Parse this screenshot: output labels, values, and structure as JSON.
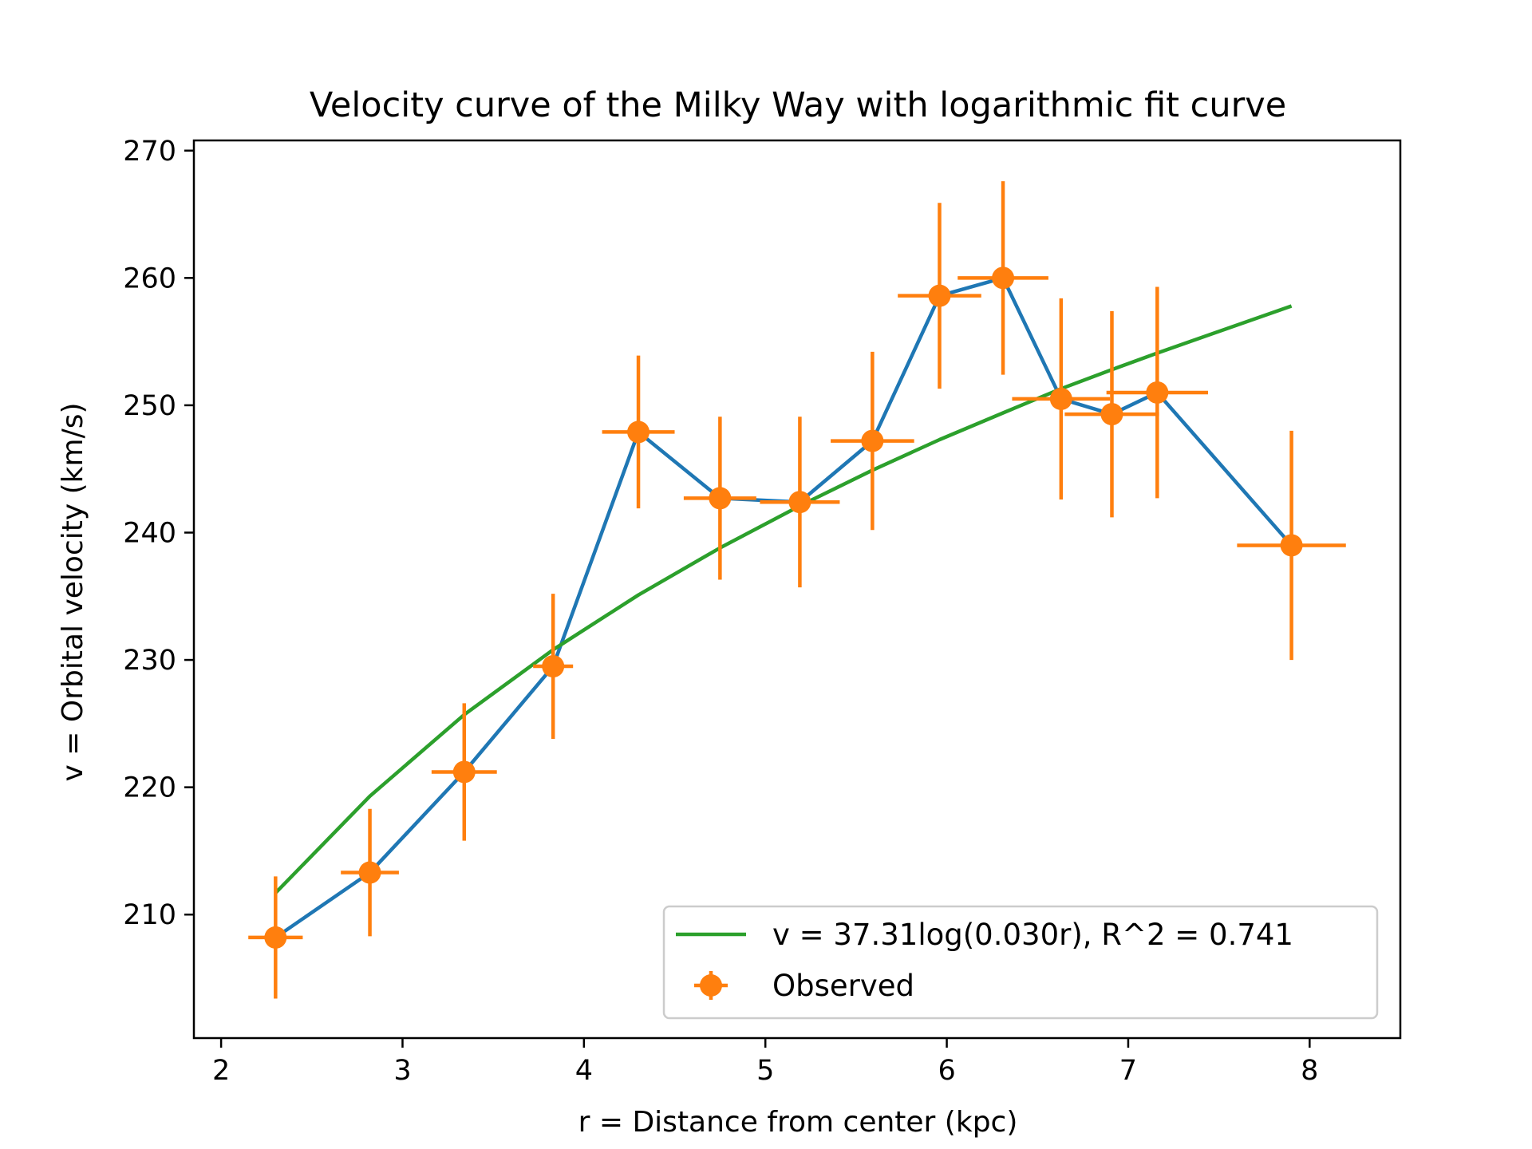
{
  "chart_data": {
    "type": "line",
    "title": "Velocity curve of the Milky Way with logarithmic fit curve",
    "xlabel": "r = Distance from center (kpc)",
    "ylabel": "v = Orbital velocity (km/s)",
    "xlim": [
      1.85,
      8.5
    ],
    "ylim": [
      200.3,
      270.8
    ],
    "xticks": [
      2,
      3,
      4,
      5,
      6,
      7,
      8
    ],
    "yticks": [
      210,
      220,
      230,
      240,
      250,
      260,
      270
    ],
    "grid": false,
    "legend_position": "lower-right",
    "observed": {
      "name": "Observed",
      "x": [
        2.3,
        2.82,
        3.34,
        3.83,
        4.3,
        4.75,
        5.19,
        5.59,
        5.96,
        6.31,
        6.63,
        6.91,
        7.16,
        7.9
      ],
      "y": [
        208.2,
        213.3,
        221.2,
        229.5,
        247.9,
        242.7,
        242.4,
        247.2,
        258.6,
        260.0,
        250.5,
        249.3,
        251.0,
        239.0
      ],
      "x_err": [
        0.15,
        0.16,
        0.18,
        0.11,
        0.2,
        0.2,
        0.22,
        0.23,
        0.23,
        0.25,
        0.27,
        0.26,
        0.28,
        0.3
      ],
      "y_err": [
        4.8,
        5.0,
        5.4,
        5.7,
        6.0,
        6.4,
        6.7,
        7.0,
        7.3,
        7.6,
        7.9,
        8.1,
        8.3,
        9.0
      ],
      "line_color": "#1f77b4",
      "marker_color": "#ff7f0e"
    },
    "fit": {
      "name": "v = 37.31log(0.030r), R^2 = 0.741",
      "x": [
        2.3,
        2.82,
        3.34,
        3.83,
        4.3,
        4.75,
        5.19,
        5.59,
        5.96,
        6.31,
        6.63,
        6.91,
        7.16,
        7.9
      ],
      "y": [
        211.7,
        219.3,
        225.7,
        230.8,
        235.1,
        238.8,
        242.1,
        244.9,
        247.3,
        249.4,
        251.3,
        252.8,
        254.1,
        257.8
      ],
      "color": "#2ca02c"
    }
  }
}
